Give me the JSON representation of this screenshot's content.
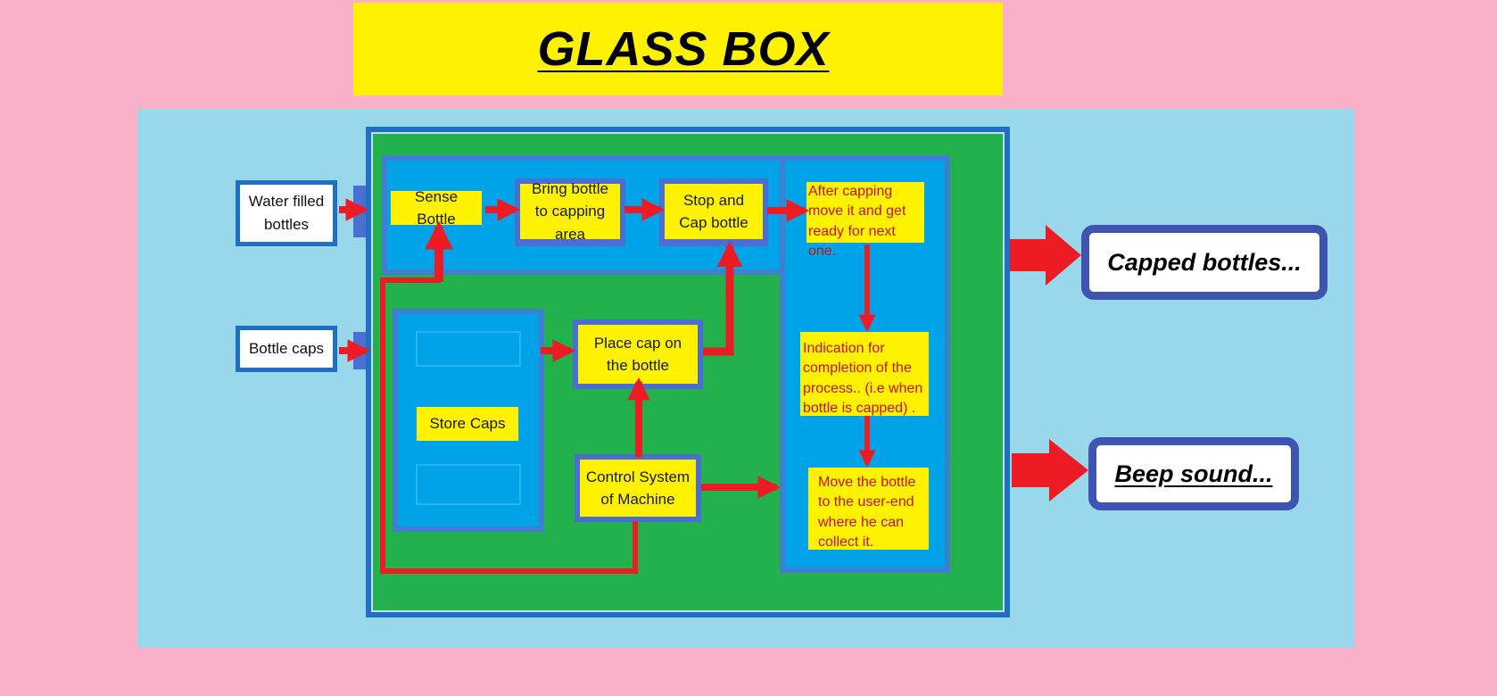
{
  "title": "GLASS BOX",
  "inputs": {
    "water": "Water filled bottles",
    "caps": "Bottle caps"
  },
  "process": {
    "sense": "Sense Bottle",
    "bring": "Bring bottle to capping area",
    "stop_cap": "Stop and Cap bottle",
    "after_capping": "After capping move it and get ready for next one.",
    "place_cap": "Place cap on the bottle",
    "store_caps": "Store Caps",
    "control": "Control System of Machine",
    "indication": "Indication for completion of the process..  (i.e when bottle is capped) .",
    "move_bottle": "Move the bottle to the user-end where he can collect it."
  },
  "outputs": {
    "capped": "Capped bottles...",
    "beep": "Beep sound..."
  },
  "colors": {
    "background": "#f9b0c8",
    "panel": "#99d8ea",
    "title_banner": "#fff200",
    "glass_box": "#22b14c",
    "zone": "#00a2e8",
    "arrow": "#ed1c24",
    "output_border": "#3f54b0"
  }
}
